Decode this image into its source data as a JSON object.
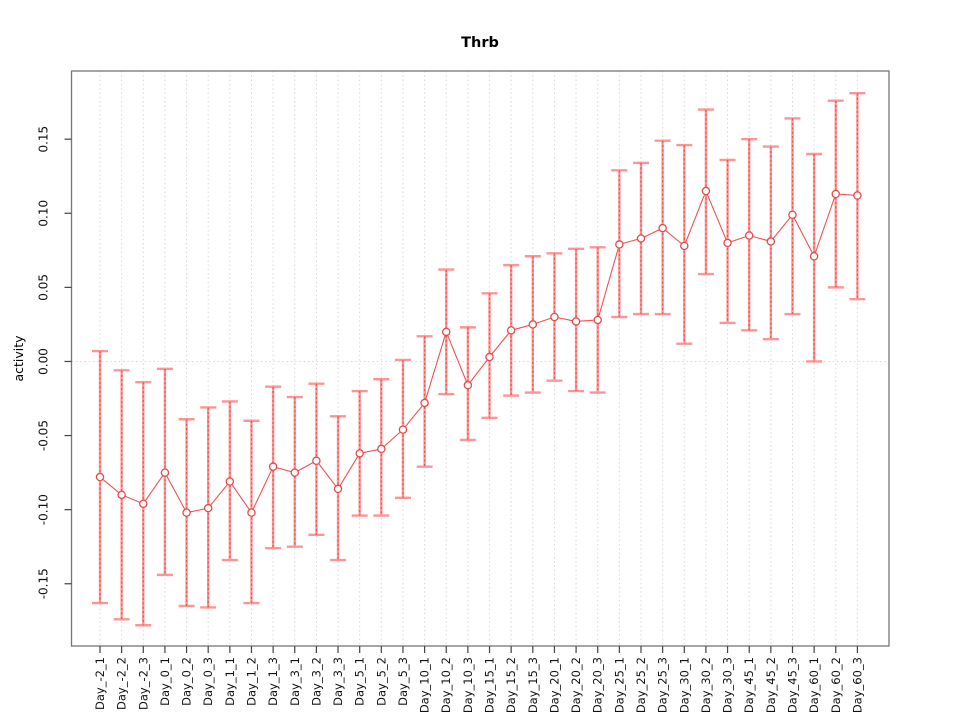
{
  "title": "Thrb",
  "chart_data": {
    "type": "line",
    "title": "Thrb",
    "xlabel": "",
    "ylabel": "activity",
    "error_bars": true,
    "legend": "none",
    "grid": "dotted vertical line at every category; dotted horizontal line at y=0",
    "ylim": [
      -0.192,
      0.196
    ],
    "y_ticks": [
      0.15,
      0.1,
      0.05,
      0.0,
      -0.05,
      -0.1,
      -0.15
    ],
    "categories": [
      "Day_-2_1",
      "Day_-2_2",
      "Day_-2_3",
      "Day_0_1",
      "Day_0_2",
      "Day_0_3",
      "Day_1_1",
      "Day_1_2",
      "Day_1_3",
      "Day_3_1",
      "Day_3_2",
      "Day_3_3",
      "Day_5_1",
      "Day_5_2",
      "Day_5_3",
      "Day_10_1",
      "Day_10_2",
      "Day_10_3",
      "Day_15_1",
      "Day_15_2",
      "Day_15_3",
      "Day_20_1",
      "Day_20_2",
      "Day_20_3",
      "Day_25_1",
      "Day_25_2",
      "Day_25_3",
      "Day_30_1",
      "Day_30_2",
      "Day_30_3",
      "Day_45_1",
      "Day_45_2",
      "Day_45_3",
      "Day_60_1",
      "Day_60_2",
      "Day_60_3"
    ],
    "values": [
      -0.078,
      -0.09,
      -0.096,
      -0.075,
      -0.102,
      -0.099,
      -0.081,
      -0.102,
      -0.071,
      -0.075,
      -0.067,
      -0.086,
      -0.062,
      -0.059,
      -0.046,
      -0.028,
      0.02,
      -0.016,
      0.003,
      0.021,
      0.025,
      0.03,
      0.027,
      0.028,
      0.079,
      0.083,
      0.09,
      0.078,
      0.115,
      0.08,
      0.085,
      0.081,
      0.099,
      0.071,
      0.113,
      0.112
    ],
    "lower": [
      -0.163,
      -0.174,
      -0.178,
      -0.144,
      -0.165,
      -0.166,
      -0.134,
      -0.163,
      -0.126,
      -0.125,
      -0.117,
      -0.134,
      -0.104,
      -0.104,
      -0.092,
      -0.071,
      -0.022,
      -0.053,
      -0.038,
      -0.023,
      -0.021,
      -0.013,
      -0.02,
      -0.021,
      0.03,
      0.032,
      0.032,
      0.012,
      0.059,
      0.026,
      0.021,
      0.015,
      0.032,
      0.0,
      0.05,
      0.042
    ],
    "upper": [
      0.007,
      -0.006,
      -0.014,
      -0.005,
      -0.039,
      -0.031,
      -0.027,
      -0.04,
      -0.017,
      -0.024,
      -0.015,
      -0.037,
      -0.02,
      -0.012,
      0.001,
      0.017,
      0.062,
      0.023,
      0.046,
      0.065,
      0.071,
      0.073,
      0.076,
      0.077,
      0.129,
      0.134,
      0.149,
      0.146,
      0.17,
      0.136,
      0.15,
      0.145,
      0.164,
      0.14,
      0.176,
      0.181
    ],
    "colors": {
      "point": "#e84848",
      "connector": "#ef5350",
      "error_bar": "#ff9494",
      "error_dash": "#ef5350",
      "grid": "#d8d8d8",
      "axis_tick": "#444444",
      "box": "#777777"
    }
  }
}
